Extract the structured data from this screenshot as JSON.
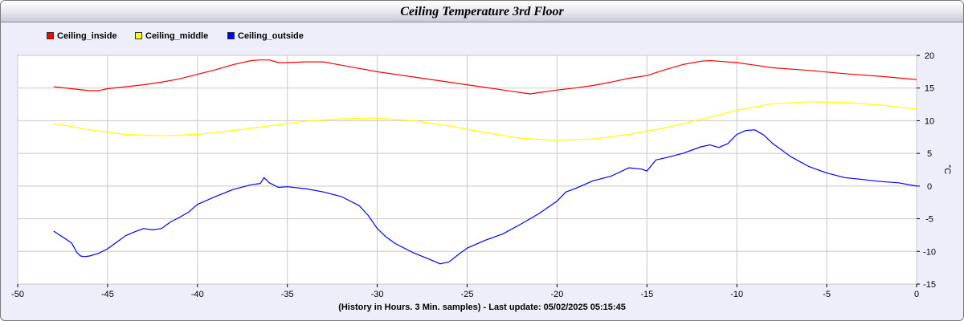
{
  "title": "Ceiling Temperature 3rd Floor",
  "footer": "(History in Hours. 3 Min. samples) - Last update: 05/02/2025 05:15:45",
  "chart_data": {
    "type": "line",
    "title": "Ceiling Temperature 3rd Floor",
    "xlabel": "(History in Hours. 3 Min. samples) - Last update: 05/02/2025 05:15:45",
    "ylabel": "°C",
    "xlim": [
      -50,
      0
    ],
    "ylim": [
      -15,
      20
    ],
    "xticks": [
      -50,
      -45,
      -40,
      -35,
      -30,
      -25,
      -20,
      -15,
      -10,
      -5,
      0
    ],
    "yticks": [
      20,
      15,
      10,
      5,
      0,
      -5,
      -10,
      -15
    ],
    "grid": true,
    "legend_position": "top-left",
    "series": [
      {
        "name": "Ceiling_inside",
        "color": "#ff0000",
        "x": [
          -48,
          -47,
          -46,
          -45.5,
          -45,
          -44,
          -43,
          -42,
          -41,
          -40,
          -39,
          -38,
          -37,
          -36.5,
          -36,
          -35.5,
          -35,
          -34,
          -33,
          -32,
          -31,
          -30,
          -28,
          -26,
          -24,
          -22,
          -21.5,
          -21,
          -20,
          -19,
          -18,
          -17,
          -16,
          -15,
          -14,
          -13,
          -12,
          -11.5,
          -11,
          -10,
          -9,
          -8,
          -6,
          -4,
          -2,
          0
        ],
        "y": [
          15.2,
          14.9,
          14.6,
          14.6,
          14.9,
          15.2,
          15.5,
          15.9,
          16.4,
          17.1,
          17.8,
          18.6,
          19.2,
          19.3,
          19.3,
          18.9,
          18.9,
          19.0,
          19.0,
          18.5,
          18.0,
          17.5,
          16.7,
          15.9,
          15.1,
          14.3,
          14.1,
          14.3,
          14.7,
          15.0,
          15.4,
          15.9,
          16.5,
          16.9,
          17.8,
          18.6,
          19.1,
          19.2,
          19.1,
          18.9,
          18.5,
          18.1,
          17.7,
          17.2,
          16.8,
          16.3
        ]
      },
      {
        "name": "Ceiling_middle",
        "color": "#ffff00",
        "x": [
          -48,
          -46,
          -44,
          -42,
          -40,
          -38,
          -36,
          -34,
          -32,
          -30,
          -28,
          -26,
          -24,
          -22,
          -20,
          -18,
          -16,
          -14,
          -12,
          -10,
          -8,
          -6,
          -4,
          -2,
          0
        ],
        "y": [
          9.6,
          8.6,
          7.9,
          7.7,
          7.9,
          8.5,
          9.2,
          9.9,
          10.3,
          10.4,
          10.0,
          9.2,
          8.2,
          7.3,
          7.0,
          7.2,
          7.9,
          8.9,
          10.2,
          11.6,
          12.6,
          12.9,
          12.8,
          12.4,
          11.8
        ]
      },
      {
        "name": "Ceiling_outside",
        "color": "#0000ff",
        "x": [
          -48,
          -47.5,
          -47,
          -46.7,
          -46.5,
          -46.3,
          -46,
          -45.5,
          -45,
          -44.5,
          -44,
          -43.5,
          -43,
          -42.5,
          -42,
          -41.5,
          -41,
          -40.5,
          -40,
          -39,
          -38,
          -37,
          -36.5,
          -36.3,
          -36,
          -35.5,
          -35,
          -34,
          -33,
          -32,
          -31,
          -30.5,
          -30,
          -29.5,
          -29,
          -28,
          -27,
          -26.5,
          -26,
          -25.5,
          -25,
          -24,
          -23,
          -22,
          -21,
          -20,
          -19.5,
          -19,
          -18,
          -17,
          -16,
          -15.3,
          -15,
          -14.5,
          -14,
          -13,
          -12,
          -11.5,
          -11,
          -10.5,
          -10,
          -9.5,
          -9,
          -8.5,
          -8,
          -7,
          -6,
          -5,
          -4,
          -3,
          -2,
          -1,
          0
        ],
        "y": [
          -6.9,
          -7.8,
          -8.7,
          -10.2,
          -10.7,
          -10.8,
          -10.7,
          -10.3,
          -9.6,
          -8.6,
          -7.6,
          -7.0,
          -6.5,
          -6.7,
          -6.5,
          -5.5,
          -4.8,
          -4.0,
          -2.8,
          -1.6,
          -0.5,
          0.2,
          0.4,
          1.3,
          0.5,
          -0.2,
          -0.1,
          -0.4,
          -0.9,
          -1.6,
          -3.0,
          -4.5,
          -6.5,
          -7.8,
          -8.8,
          -10.2,
          -11.3,
          -11.9,
          -11.6,
          -10.5,
          -9.5,
          -8.3,
          -7.3,
          -5.8,
          -4.2,
          -2.3,
          -0.9,
          -0.4,
          0.8,
          1.5,
          2.8,
          2.6,
          2.3,
          4.0,
          4.3,
          5.0,
          6.0,
          6.3,
          5.9,
          6.5,
          7.9,
          8.5,
          8.6,
          7.8,
          6.5,
          4.5,
          3.0,
          2.0,
          1.3,
          1.0,
          0.7,
          0.5,
          0.0
        ]
      }
    ]
  }
}
